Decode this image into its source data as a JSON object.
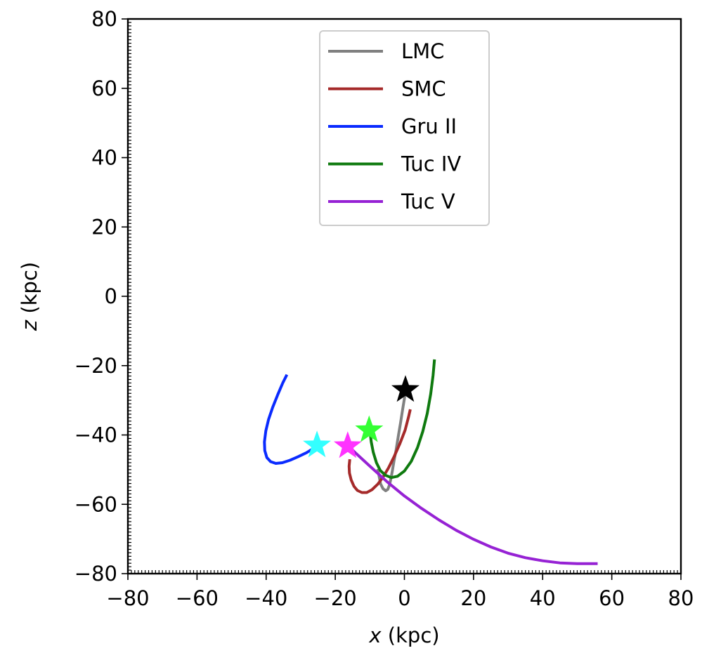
{
  "chart_data": {
    "type": "line",
    "title": "",
    "xlabel": {
      "var": "x",
      "unit": " (kpc)"
    },
    "ylabel": {
      "var": "z",
      "unit": " (kpc)"
    },
    "xlim": [
      -80,
      80
    ],
    "ylim": [
      -80,
      80
    ],
    "xticks": [
      -80,
      -60,
      -40,
      -20,
      0,
      20,
      40,
      60,
      80
    ],
    "yticks": [
      -80,
      -60,
      -40,
      -20,
      0,
      20,
      40,
      60,
      80
    ],
    "xtick_labels": [
      "−80",
      "−60",
      "−40",
      "−20",
      "0",
      "20",
      "40",
      "60",
      "80"
    ],
    "ytick_labels": [
      "−80",
      "−60",
      "−40",
      "−20",
      "0",
      "20",
      "40",
      "60",
      "80"
    ],
    "minor_tick_step": 1,
    "grid": false,
    "legend_position": "top-center",
    "series": [
      {
        "name": "LMC",
        "color": "#808080",
        "points": [
          [
            -7.7,
            -49.8
          ],
          [
            -7.3,
            -52.0
          ],
          [
            -6.9,
            -54.1
          ],
          [
            -6.2,
            -55.5
          ],
          [
            -5.4,
            -56.1
          ],
          [
            -4.8,
            -55.7
          ],
          [
            -4.3,
            -54.4
          ],
          [
            -3.9,
            -52.6
          ],
          [
            -3.5,
            -50.4
          ],
          [
            -3.0,
            -47.5
          ],
          [
            -2.4,
            -44.3
          ],
          [
            -1.7,
            -40.0
          ],
          [
            -1.1,
            -36.4
          ],
          [
            -0.5,
            -32.6
          ],
          [
            0.0,
            -29.5
          ],
          [
            0.3,
            -27.3
          ]
        ]
      },
      {
        "name": "SMC",
        "color": "#a52a2a",
        "points": [
          [
            -15.8,
            -47.0
          ],
          [
            -16.0,
            -49.0
          ],
          [
            -15.9,
            -51.0
          ],
          [
            -15.4,
            -53.0
          ],
          [
            -14.6,
            -54.8
          ],
          [
            -13.6,
            -56.0
          ],
          [
            -12.3,
            -56.6
          ],
          [
            -10.9,
            -56.6
          ],
          [
            -9.4,
            -55.8
          ],
          [
            -7.7,
            -54.2
          ],
          [
            -6.2,
            -52.2
          ],
          [
            -4.6,
            -49.5
          ],
          [
            -2.9,
            -46.1
          ],
          [
            -1.3,
            -42.5
          ],
          [
            0.2,
            -38.6
          ],
          [
            1.2,
            -34.8
          ],
          [
            1.7,
            -32.6
          ]
        ]
      },
      {
        "name": "Gru II",
        "color": "#0a2bff",
        "points": [
          [
            -34.0,
            -22.6
          ],
          [
            -35.2,
            -25.0
          ],
          [
            -36.7,
            -28.5
          ],
          [
            -38.1,
            -32.0
          ],
          [
            -39.3,
            -35.5
          ],
          [
            -40.1,
            -38.8
          ],
          [
            -40.5,
            -42.0
          ],
          [
            -40.4,
            -44.5
          ],
          [
            -39.8,
            -46.5
          ],
          [
            -38.7,
            -47.7
          ],
          [
            -37.2,
            -48.2
          ],
          [
            -35.3,
            -48.0
          ],
          [
            -33.1,
            -47.3
          ],
          [
            -30.8,
            -46.3
          ],
          [
            -28.3,
            -45.1
          ],
          [
            -25.9,
            -43.6
          ],
          [
            -24.5,
            -42.8
          ]
        ]
      },
      {
        "name": "Tuc IV",
        "color": "#0f7a0f",
        "points": [
          [
            -10.0,
            -38.6
          ],
          [
            -9.6,
            -42.0
          ],
          [
            -9.0,
            -45.0
          ],
          [
            -8.1,
            -48.0
          ],
          [
            -7.0,
            -50.2
          ],
          [
            -5.5,
            -51.6
          ],
          [
            -3.8,
            -52.3
          ],
          [
            -2.0,
            -51.9
          ],
          [
            0.0,
            -50.4
          ],
          [
            2.0,
            -47.6
          ],
          [
            3.8,
            -43.6
          ],
          [
            5.3,
            -39.0
          ],
          [
            6.6,
            -33.8
          ],
          [
            7.6,
            -28.2
          ],
          [
            8.3,
            -22.8
          ],
          [
            8.7,
            -18.2
          ]
        ]
      },
      {
        "name": "Tuc V",
        "color": "#9622d4",
        "points": [
          [
            -16.4,
            -43.0
          ],
          [
            -14.0,
            -45.3
          ],
          [
            -10.0,
            -49.0
          ],
          [
            -5.0,
            -53.5
          ],
          [
            0.0,
            -57.6
          ],
          [
            5.0,
            -61.2
          ],
          [
            10.0,
            -64.5
          ],
          [
            15.0,
            -67.5
          ],
          [
            20.0,
            -70.1
          ],
          [
            25.0,
            -72.3
          ],
          [
            30.0,
            -74.1
          ],
          [
            35.0,
            -75.4
          ],
          [
            40.0,
            -76.3
          ],
          [
            45.0,
            -76.9
          ],
          [
            50.0,
            -77.1
          ],
          [
            55.9,
            -77.1
          ]
        ]
      }
    ],
    "markers": [
      {
        "label": "LMC",
        "x": 0.3,
        "y": -27.0,
        "color": "#000000"
      },
      {
        "label": "Tuc IV",
        "x": -10.2,
        "y": -38.6,
        "color": "#33ff33"
      },
      {
        "label": "Gru II",
        "x": -25.3,
        "y": -43.0,
        "color": "#33ffff"
      },
      {
        "label": "Tuc V",
        "x": -16.4,
        "y": -43.2,
        "color": "#ff33ff"
      }
    ]
  }
}
